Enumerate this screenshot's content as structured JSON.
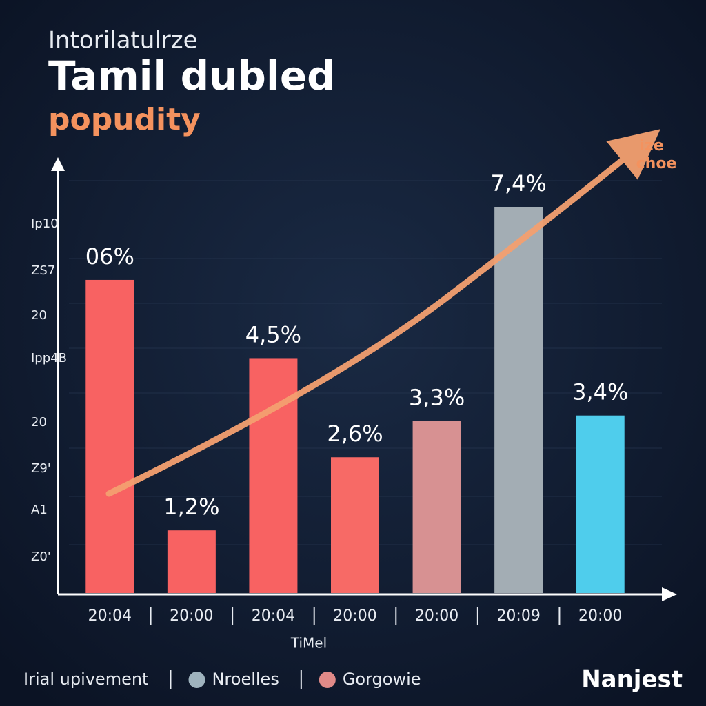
{
  "chart_data": {
    "type": "bar",
    "supertitle": "Intorilatulrze",
    "title": "Tamil dubled",
    "subtitle": "popudity",
    "categories": [
      "20:04",
      "20:00",
      "20:04",
      "20:00",
      "20:00",
      "20:09",
      "20:00"
    ],
    "values": [
      6,
      1.2,
      4.5,
      2.6,
      3.3,
      7.4,
      3.4
    ],
    "value_labels": [
      "06%",
      "1,2%",
      "4,5%",
      "2,6%",
      "3,3%",
      "7,4%",
      "3,4%"
    ],
    "colors": [
      "#f86262",
      "#f86262",
      "#f86262",
      "#f76a66",
      "#d79192",
      "#a3adb4",
      "#4fcdec"
    ],
    "y_axis_labels": [
      "Ip10",
      "ZS7",
      "20",
      "Ipp4B",
      "20",
      "Z9'",
      "A1",
      "Z0'"
    ],
    "xlabel": "TiMel",
    "annotation": [
      "ize",
      "choe"
    ],
    "legend": [
      {
        "name": "Irial upivement",
        "color": null
      },
      {
        "name": "Nroelles",
        "color": "#9fb3be"
      },
      {
        "name": "Gorgowie",
        "color": "#e08a88"
      }
    ],
    "brand": "Nanjest"
  }
}
